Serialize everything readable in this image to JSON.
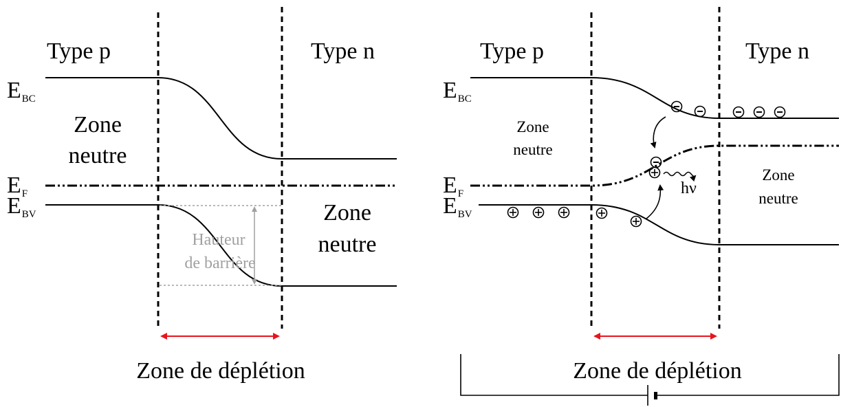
{
  "left_panel": {
    "type_p": "Type p",
    "type_n": "Type n",
    "e_bc_main": "E",
    "e_bc_sub": "BC",
    "e_f_main": "E",
    "e_f_sub": "F",
    "e_bv_main": "E",
    "e_bv_sub": "BV",
    "zone_neutre_p_line1": "Zone",
    "zone_neutre_p_line2": "neutre",
    "zone_neutre_n_line1": "Zone",
    "zone_neutre_n_line2": "neutre",
    "barrier_line1": "Hauteur",
    "barrier_line2": "de barrière",
    "depletion_label": "Zone de déplétion"
  },
  "right_panel": {
    "type_p": "Type p",
    "type_n": "Type n",
    "e_bc_main": "E",
    "e_bc_sub": "BC",
    "e_f_main": "E",
    "e_f_sub": "F",
    "e_bv_main": "E",
    "e_bv_sub": "BV",
    "zone_neutre_p_line1": "Zone",
    "zone_neutre_p_line2": "neutre",
    "zone_neutre_n_line1": "Zone",
    "zone_neutre_n_line2": "neutre",
    "photon_label": "hν",
    "depletion_label": "Zone de déplétion",
    "electron_symbol": "−",
    "hole_symbol": "+"
  },
  "colors": {
    "depletion_arrow": "#e8141c",
    "barrier_annotation": "#a0a0a0",
    "lines": "#000000"
  }
}
